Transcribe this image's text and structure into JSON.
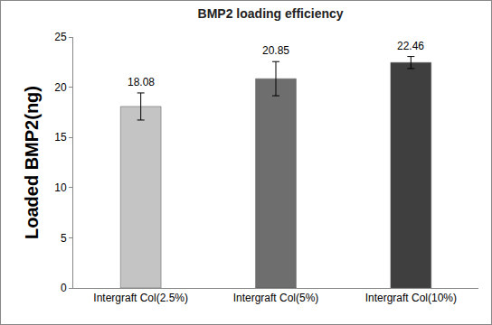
{
  "chart_data": {
    "type": "bar",
    "title": "BMP2 loading efficiency",
    "y_label": "Loaded BMP2(ng)",
    "categories": [
      "Intergraft Col(2.5%)",
      "Intergraft Col(5%)",
      "Intergraft Col(10%)"
    ],
    "values": [
      18.08,
      20.85,
      22.46
    ],
    "errors": [
      1.35,
      1.7,
      0.6
    ],
    "colors": [
      "#c4c4c4",
      "#6e6e6e",
      "#3f3f3f"
    ],
    "ylim": [
      0,
      25
    ],
    "yticks": [
      0,
      5,
      10,
      15,
      20,
      25
    ],
    "grid": false,
    "data_labels": true
  }
}
